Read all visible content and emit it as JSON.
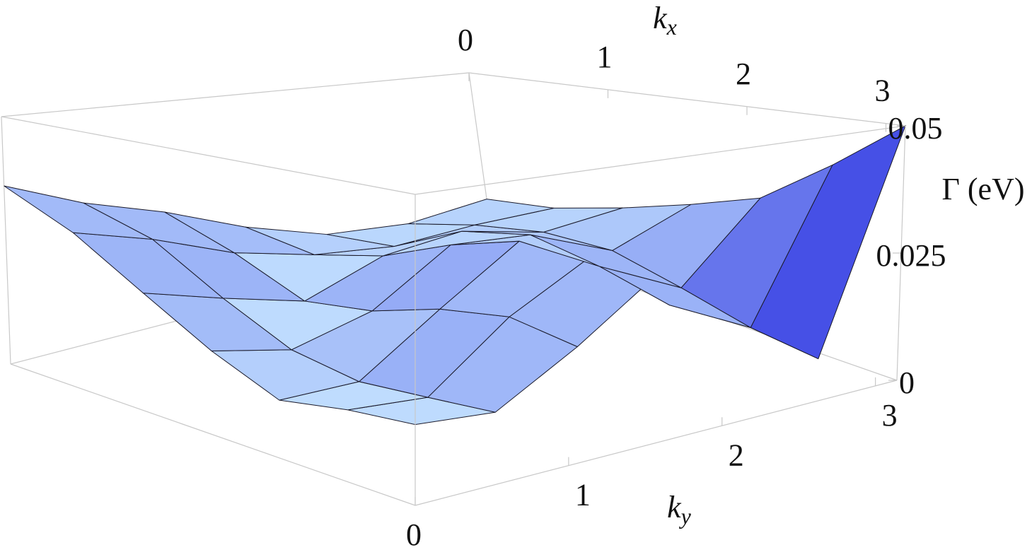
{
  "chart_data": {
    "type": "surface",
    "xlabel": {
      "text": "k",
      "subscript": "x"
    },
    "ylabel": {
      "text": "k",
      "subscript": "y"
    },
    "zlabel": "Γ (eV)",
    "x": [
      0,
      0.52,
      1.05,
      1.57,
      2.09,
      2.62,
      3.14
    ],
    "y": [
      0,
      0.52,
      1.05,
      1.57,
      2.09,
      2.62,
      3.14
    ],
    "z": [
      [
        0.036,
        0.03,
        0.025,
        0.018,
        0.012,
        0.01,
        0.012
      ],
      [
        0.03,
        0.026,
        0.02,
        0.016,
        0.014,
        0.015,
        0.015
      ],
      [
        0.022,
        0.018,
        0.014,
        0.02,
        0.022,
        0.018,
        0.02
      ],
      [
        0.015,
        0.012,
        0.016,
        0.026,
        0.025,
        0.018,
        0.025
      ],
      [
        0.01,
        0.01,
        0.02,
        0.03,
        0.022,
        0.014,
        0.03
      ],
      [
        0.012,
        0.011,
        0.022,
        0.03,
        0.018,
        0.01,
        0.04
      ],
      [
        0.013,
        0.012,
        0.02,
        0.03,
        0.02,
        0.008,
        0.05
      ]
    ],
    "xlim": [
      0,
      3.14
    ],
    "ylim": [
      0,
      3.14
    ],
    "zlim": [
      0,
      0.05
    ],
    "xticks": [
      0,
      1,
      2,
      3
    ],
    "yticks": [
      0,
      1,
      2,
      3
    ],
    "zticks": [
      0,
      0.025,
      0.05
    ],
    "color_light": "#c4e2ff",
    "color_dark": "#4650e6"
  }
}
